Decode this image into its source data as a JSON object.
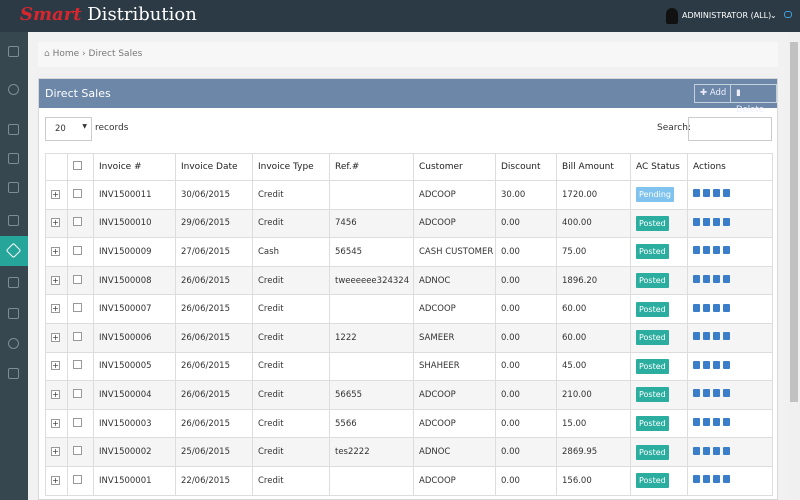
{
  "header": {
    "logo_brand": "Smart",
    "logo_rest": "Distribution",
    "user": "ADMINISTRATOR (ALL)"
  },
  "breadcrumb": [
    "Home",
    "Direct Sales"
  ],
  "panel": {
    "title": "Direct Sales",
    "buttons": [
      "Add",
      "Delete"
    ]
  },
  "controls": {
    "page_size": "20",
    "page_size_suffix": "records",
    "search_label": "Search:"
  },
  "table": {
    "columns": [
      "Invoice #",
      "Invoice Date",
      "Invoice Type",
      "Ref.#",
      "Customer",
      "Discount",
      "Bill Amount",
      "AC Status",
      "Actions"
    ],
    "rows": [
      [
        "INV1500011",
        "30/06/2015",
        "Credit",
        null,
        "ADCOOP",
        "30.00",
        "1720.00",
        "Pending"
      ],
      [
        "INV1500010",
        "29/06/2015",
        "Credit",
        "7456",
        "ADCOOP",
        "0.00",
        "400.00",
        "Posted"
      ],
      [
        "INV1500009",
        "27/06/2015",
        "Cash",
        "56545",
        "CASH CUSTOMER",
        "0.00",
        "75.00",
        "Posted"
      ],
      [
        "INV1500008",
        "26/06/2015",
        "Credit",
        "tweeeeee324324",
        "ADNOC",
        "0.00",
        "1896.20",
        "Posted"
      ],
      [
        "INV1500007",
        "26/06/2015",
        "Credit",
        null,
        "ADCOOP",
        "0.00",
        "60.00",
        "Posted"
      ],
      [
        "INV1500006",
        "26/06/2015",
        "Credit",
        "1222",
        "SAMEER",
        "0.00",
        "60.00",
        "Posted"
      ],
      [
        "INV1500005",
        "26/06/2015",
        "Credit",
        null,
        "SHAHEER",
        "0.00",
        "45.00",
        "Posted"
      ],
      [
        "INV1500004",
        "26/06/2015",
        "Credit",
        "56655",
        "ADCOOP",
        "0.00",
        "210.00",
        "Posted"
      ],
      [
        "INV1500003",
        "26/06/2015",
        "Credit",
        "5566",
        "ADCOOP",
        "0.00",
        "15.00",
        "Posted"
      ],
      [
        "INV1500002",
        "25/06/2015",
        "Credit",
        "tes2222",
        "ADNOC",
        "0.00",
        "2869.95",
        "Posted"
      ],
      [
        "INV1500001",
        "22/06/2015",
        "Credit",
        null,
        "ADCOOP",
        "0.00",
        "156.00",
        "Posted"
      ]
    ]
  }
}
